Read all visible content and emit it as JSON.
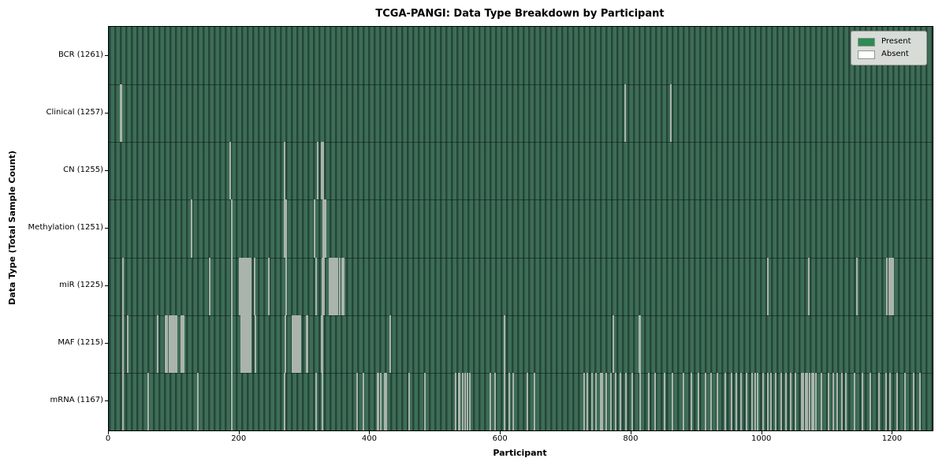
{
  "chart_data": {
    "type": "heatmap",
    "title": "TCGA-PANGI: Data Type Breakdown by Participant",
    "xlabel": "Participant",
    "ylabel": "Data Type (Total Sample Count)",
    "x_ticks": [
      0,
      200,
      400,
      600,
      800,
      1000,
      1200
    ],
    "x_range": [
      0,
      1261
    ],
    "total_participants": 1261,
    "grid": false,
    "legend": {
      "position": "upper right",
      "entries": [
        {
          "label": "Present",
          "color": "#2e8b57"
        },
        {
          "label": "Absent",
          "color": "#ffffff"
        }
      ]
    },
    "colors": {
      "present": "#2e8b57",
      "absent": "#ffffff"
    },
    "rows": [
      {
        "label": "BCR (1261)",
        "data_type": "BCR",
        "present_count": 1261,
        "absent_count": 0,
        "absent_indices": []
      },
      {
        "label": "Clinical (1257)",
        "data_type": "Clinical",
        "present_count": 1257,
        "absent_count": 4,
        "absent_indices": [
          17,
          18,
          789,
          859
        ]
      },
      {
        "label": "CN (1255)",
        "data_type": "CN",
        "present_count": 1255,
        "absent_count": 6,
        "absent_indices": [
          185,
          268,
          318,
          325,
          326,
          327
        ]
      },
      {
        "label": "Methylation (1251)",
        "data_type": "Methylation",
        "present_count": 1251,
        "absent_count": 10,
        "absent_indices": [
          126,
          187,
          268,
          270,
          314,
          327,
          328,
          329,
          330,
          331
        ]
      },
      {
        "label": "miR (1225)",
        "data_type": "miR",
        "present_count": 1225,
        "absent_count": 36,
        "absent_indices": [
          21,
          153,
          187,
          199,
          201,
          203,
          205,
          207,
          210,
          212,
          214,
          216,
          222,
          244,
          270,
          316,
          326,
          328,
          337,
          339,
          341,
          343,
          345,
          347,
          349,
          352,
          356,
          358,
          1007,
          1070,
          1144,
          1190,
          1193,
          1195,
          1197,
          1199
        ]
      },
      {
        "label": "MAF (1215)",
        "data_type": "MAF",
        "present_count": 1215,
        "absent_count": 46,
        "absent_indices": [
          21,
          28,
          74,
          86,
          88,
          92,
          94,
          96,
          99,
          101,
          103,
          110,
          112,
          114,
          187,
          201,
          202,
          203,
          204,
          205,
          206,
          207,
          208,
          209,
          210,
          212,
          214,
          216,
          223,
          269,
          280,
          282,
          284,
          286,
          288,
          290,
          292,
          302,
          303,
          325,
          326,
          429,
          605,
          771,
          811,
          812
        ]
      },
      {
        "label": "mRNA (1167)",
        "data_type": "mRNA",
        "present_count": 1167,
        "absent_count": 94,
        "absent_indices": [
          21,
          59,
          135,
          187,
          268,
          316,
          326,
          379,
          389,
          410,
          412,
          415,
          421,
          423,
          458,
          483,
          530,
          534,
          536,
          540,
          544,
          548,
          552,
          583,
          590,
          604,
          612,
          618,
          640,
          650,
          726,
          731,
          738,
          745,
          752,
          753,
          754,
          760,
          767,
          775,
          782,
          790,
          800,
          812,
          825,
          835,
          850,
          862,
          878,
          890,
          902,
          912,
          921,
          930,
          942,
          952,
          959,
          966,
          975,
          983,
          988,
          992,
          1000,
          1007,
          1013,
          1020,
          1028,
          1035,
          1042,
          1050,
          1059,
          1062,
          1065,
          1068,
          1072,
          1075,
          1078,
          1081,
          1090,
          1100,
          1108,
          1114,
          1121,
          1127,
          1140,
          1152,
          1165,
          1178,
          1188,
          1195,
          1205,
          1218,
          1231,
          1240
        ]
      }
    ]
  }
}
